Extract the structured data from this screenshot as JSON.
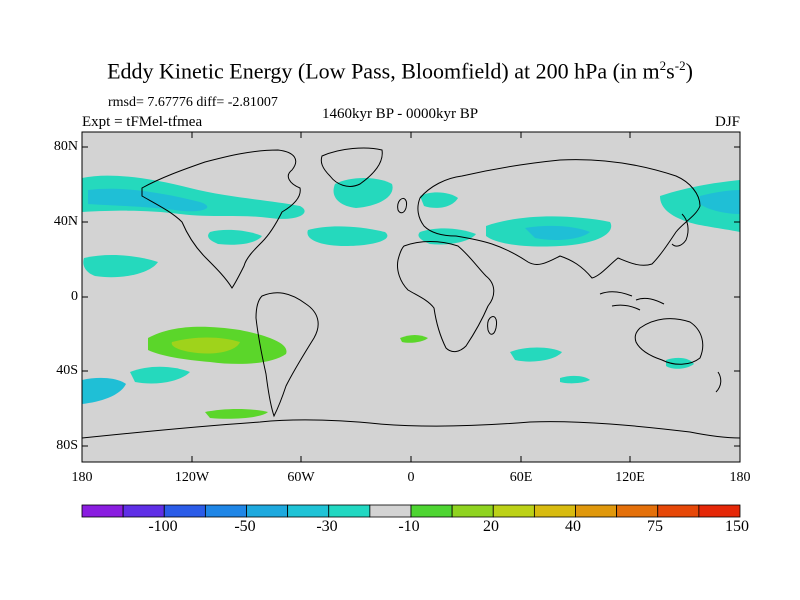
{
  "title": {
    "main": "Eddy Kinetic Energy (Low Pass, Bloomfield) at 200 hPa (in m",
    "sup1": "2",
    "mid": "s",
    "sup2": "-2",
    "end": ")"
  },
  "stats": "rmsd= 7.67776 diff= -2.81007",
  "experiment": "Expt = tFMel-tfmea",
  "period": "1460kyr BP - 0000kyr BP",
  "season": "DJF",
  "map": {
    "lat_labels": [
      "80N",
      "40N",
      "0",
      "40S",
      "80S"
    ],
    "lon_labels": [
      "180",
      "120W",
      "60W",
      "0",
      "60E",
      "120E",
      "180"
    ],
    "lat_range": [
      -90,
      90
    ],
    "lon_range": [
      -180,
      180
    ],
    "colors": {
      "ocean_land_neutral": "#d3d3d3",
      "negative_small": "#25d9bd",
      "negative_medium": "#1fbfd6",
      "positive_small": "#5bd62a",
      "positive_medium": "#9fd31b"
    }
  },
  "colorbar": {
    "labels": [
      "-100",
      "-50",
      "-30",
      "-10",
      "20",
      "40",
      "75",
      "150"
    ],
    "colors": [
      "#8a1de0",
      "#5f2fe6",
      "#2b5ce8",
      "#1f86e6",
      "#1ea9de",
      "#1fc3d6",
      "#22d8c2",
      "#d3d3d3",
      "#4ed532",
      "#8fd320",
      "#bcd117",
      "#d8bb10",
      "#e0980c",
      "#e4700a",
      "#e64808",
      "#e52808"
    ]
  }
}
